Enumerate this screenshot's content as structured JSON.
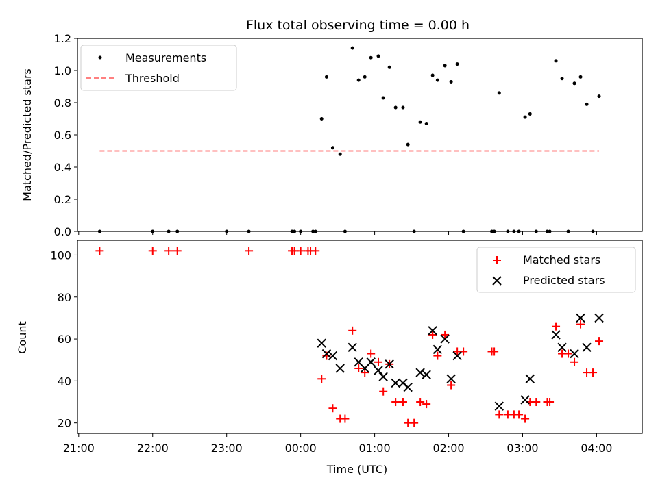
{
  "chart_data": [
    {
      "type": "scatter",
      "title": "Flux total observing time = 0.00 h",
      "ylabel": "Matched/Predicted stars",
      "ylim": [
        0,
        1.2
      ],
      "yticks": [
        "0.0",
        "0.2",
        "0.4",
        "0.6",
        "0.8",
        "1.0",
        "1.2"
      ],
      "ytick_values": [
        0,
        0.2,
        0.4,
        0.6,
        0.8,
        1.0,
        1.2
      ],
      "legend_position": "top-left",
      "series": [
        {
          "name": "Measurements",
          "marker": "dot",
          "color": "#000000",
          "points": [
            [
              "21:17",
              0
            ],
            [
              "22:00",
              0
            ],
            [
              "22:13",
              0
            ],
            [
              "22:20",
              0
            ],
            [
              "23:18",
              0
            ],
            [
              "00:00",
              0
            ],
            [
              "00:10",
              0
            ],
            [
              "00:12",
              0
            ],
            [
              "00:17",
              0.7
            ],
            [
              "00:21",
              0.96
            ],
            [
              "00:26",
              0.52
            ],
            [
              "00:32",
              0.48
            ],
            [
              "00:36",
              0
            ],
            [
              "00:42",
              1.14
            ],
            [
              "00:47",
              0.94
            ],
            [
              "00:52",
              0.96
            ],
            [
              "00:57",
              1.08
            ],
            [
              "01:03",
              1.09
            ],
            [
              "01:07",
              0.83
            ],
            [
              "01:12",
              1.02
            ],
            [
              "01:17",
              0.77
            ],
            [
              "01:23",
              0.77
            ],
            [
              "01:27",
              0.54
            ],
            [
              "01:32",
              0
            ],
            [
              "01:37",
              0.68
            ],
            [
              "01:42",
              0.67
            ],
            [
              "01:47",
              0.97
            ],
            [
              "01:51",
              0.94
            ],
            [
              "01:57",
              1.03
            ],
            [
              "02:02",
              0.93
            ],
            [
              "02:07",
              1.04
            ],
            [
              "02:12",
              0
            ],
            [
              "02:35",
              0
            ],
            [
              "02:37",
              0
            ],
            [
              "02:41",
              0.86
            ],
            [
              "02:48",
              0
            ],
            [
              "02:53",
              0
            ],
            [
              "02:57",
              0
            ],
            [
              "03:02",
              0.71
            ],
            [
              "03:06",
              0.73
            ],
            [
              "03:11",
              0
            ],
            [
              "03:20",
              0
            ],
            [
              "03:22",
              0
            ],
            [
              "03:27",
              1.06
            ],
            [
              "03:32",
              0.95
            ],
            [
              "03:37",
              0
            ],
            [
              "03:42",
              0.92
            ],
            [
              "03:47",
              0.96
            ],
            [
              "03:52",
              0.79
            ],
            [
              "03:57",
              0
            ],
            [
              "04:02",
              0.84
            ],
            [
              "23:00",
              0
            ],
            [
              "23:55",
              0
            ],
            [
              "23:53",
              0
            ]
          ]
        },
        {
          "name": "Threshold",
          "style": "dashed",
          "color": "#ff8080",
          "points": [
            [
              "21:17",
              0.5
            ],
            [
              "04:02",
              0.5
            ]
          ]
        }
      ]
    },
    {
      "type": "scatter",
      "xlabel": "Time (UTC)",
      "ylabel": "Count",
      "ylim": [
        15,
        107
      ],
      "yticks": [
        "20",
        "40",
        "60",
        "80",
        "100"
      ],
      "ytick_values": [
        20,
        40,
        60,
        80,
        100
      ],
      "xticks": [
        "21:00",
        "22:00",
        "23:00",
        "00:00",
        "01:00",
        "02:00",
        "03:00",
        "04:00"
      ],
      "xtick_values": [
        "21:00",
        "22:00",
        "23:00",
        "00:00",
        "01:00",
        "02:00",
        "03:00",
        "04:00"
      ],
      "legend_position": "top-right",
      "series": [
        {
          "name": "Matched stars",
          "marker": "plus",
          "color": "#ff0000",
          "points": [
            [
              "21:17",
              102
            ],
            [
              "22:00",
              102
            ],
            [
              "22:13",
              102
            ],
            [
              "22:20",
              102
            ],
            [
              "23:18",
              102
            ],
            [
              "23:53",
              102
            ],
            [
              "23:55",
              102
            ],
            [
              "00:00",
              102
            ],
            [
              "00:06",
              102
            ],
            [
              "00:08",
              102
            ],
            [
              "00:12",
              102
            ],
            [
              "00:17",
              41
            ],
            [
              "00:21",
              52
            ],
            [
              "00:26",
              27
            ],
            [
              "00:32",
              22
            ],
            [
              "00:36",
              22
            ],
            [
              "00:42",
              64
            ],
            [
              "00:47",
              46
            ],
            [
              "00:52",
              44
            ],
            [
              "00:57",
              53
            ],
            [
              "01:03",
              49
            ],
            [
              "01:07",
              35
            ],
            [
              "01:12",
              48
            ],
            [
              "01:17",
              30
            ],
            [
              "01:23",
              30
            ],
            [
              "01:27",
              20
            ],
            [
              "01:32",
              20
            ],
            [
              "01:37",
              30
            ],
            [
              "01:42",
              29
            ],
            [
              "01:47",
              62
            ],
            [
              "01:51",
              52
            ],
            [
              "01:57",
              62
            ],
            [
              "02:02",
              38
            ],
            [
              "02:07",
              54
            ],
            [
              "02:12",
              54
            ],
            [
              "02:35",
              54
            ],
            [
              "02:37",
              54
            ],
            [
              "02:41",
              24
            ],
            [
              "02:48",
              24
            ],
            [
              "02:53",
              24
            ],
            [
              "02:57",
              24
            ],
            [
              "03:02",
              22
            ],
            [
              "03:06",
              30
            ],
            [
              "03:11",
              30
            ],
            [
              "03:20",
              30
            ],
            [
              "03:22",
              30
            ],
            [
              "03:27",
              66
            ],
            [
              "03:32",
              53
            ],
            [
              "03:37",
              53
            ],
            [
              "03:42",
              49
            ],
            [
              "03:47",
              67
            ],
            [
              "03:52",
              44
            ],
            [
              "03:57",
              44
            ],
            [
              "04:02",
              59
            ]
          ]
        },
        {
          "name": "Predicted stars",
          "marker": "x",
          "color": "#000000",
          "points": [
            [
              "00:17",
              58
            ],
            [
              "00:21",
              53
            ],
            [
              "00:26",
              52
            ],
            [
              "00:32",
              46
            ],
            [
              "00:42",
              56
            ],
            [
              "00:47",
              49
            ],
            [
              "00:52",
              46
            ],
            [
              "00:57",
              49
            ],
            [
              "01:03",
              45
            ],
            [
              "01:07",
              42
            ],
            [
              "01:12",
              48
            ],
            [
              "01:17",
              39
            ],
            [
              "01:23",
              39
            ],
            [
              "01:27",
              37
            ],
            [
              "01:37",
              44
            ],
            [
              "01:42",
              43
            ],
            [
              "01:47",
              64
            ],
            [
              "01:51",
              55
            ],
            [
              "01:57",
              60
            ],
            [
              "02:02",
              41
            ],
            [
              "02:07",
              52
            ],
            [
              "02:41",
              28
            ],
            [
              "03:02",
              31
            ],
            [
              "03:06",
              41
            ],
            [
              "03:27",
              62
            ],
            [
              "03:32",
              56
            ],
            [
              "03:42",
              53
            ],
            [
              "03:47",
              70
            ],
            [
              "03:52",
              56
            ],
            [
              "04:02",
              70
            ]
          ]
        }
      ]
    }
  ]
}
